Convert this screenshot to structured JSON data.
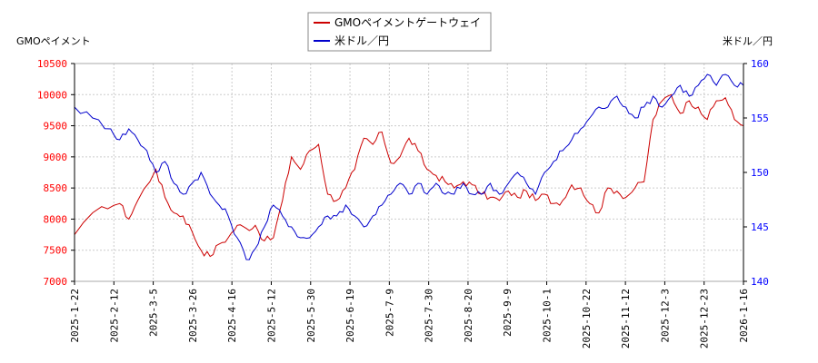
{
  "chart_data": {
    "type": "line",
    "left_axis_title": "GMOペイメント",
    "right_axis_title": "米ドル／円",
    "x_ticks": [
      "2025-1-22",
      "2025-2-12",
      "2025-3-5",
      "2025-3-26",
      "2025-4-16",
      "2025-5-12",
      "2025-5-30",
      "2025-6-19",
      "2025-7-9",
      "2025-7-30",
      "2025-8-20",
      "2025-9-9",
      "2025-10-1",
      "2025-10-22",
      "2025-11-12",
      "2025-12-3",
      "2025-12-23",
      "2026-1-16"
    ],
    "y_left": {
      "min": 7000,
      "max": 10500,
      "ticks": [
        7000,
        7500,
        8000,
        8500,
        9000,
        9500,
        10000,
        10500
      ],
      "color": "#ff0000"
    },
    "y_right": {
      "min": 140,
      "max": 160,
      "ticks": [
        140,
        145,
        150,
        155,
        160
      ],
      "color": "#0000ff"
    },
    "grid": true,
    "legend_position": "top-center",
    "series": [
      {
        "name": "GMOペイメントゲートウェイ",
        "axis": "left",
        "color": "#cc0000",
        "keyframes": [
          [
            0,
            7750
          ],
          [
            3,
            8200
          ],
          [
            5,
            8250
          ],
          [
            6,
            8000
          ],
          [
            7,
            8300
          ],
          [
            9,
            8800
          ],
          [
            10,
            8350
          ],
          [
            11,
            8100
          ],
          [
            12,
            8050
          ],
          [
            13,
            7800
          ],
          [
            14,
            7500
          ],
          [
            15,
            7400
          ],
          [
            16,
            7600
          ],
          [
            17,
            7700
          ],
          [
            18,
            7900
          ],
          [
            19,
            7850
          ],
          [
            20,
            7900
          ],
          [
            21,
            7650
          ],
          [
            22,
            7700
          ],
          [
            23,
            8300
          ],
          [
            24,
            9000
          ],
          [
            25,
            8800
          ],
          [
            26,
            9100
          ],
          [
            27,
            9200
          ],
          [
            28,
            8400
          ],
          [
            29,
            8300
          ],
          [
            30,
            8500
          ],
          [
            31,
            8800
          ],
          [
            32,
            9300
          ],
          [
            33,
            9200
          ],
          [
            34,
            9400
          ],
          [
            35,
            8900
          ],
          [
            36,
            9000
          ],
          [
            37,
            9300
          ],
          [
            38,
            9100
          ],
          [
            39,
            8800
          ],
          [
            40,
            8700
          ],
          [
            41,
            8600
          ],
          [
            42,
            8500
          ],
          [
            43,
            8600
          ],
          [
            44,
            8550
          ],
          [
            45,
            8400
          ],
          [
            46,
            8350
          ],
          [
            47,
            8300
          ],
          [
            48,
            8450
          ],
          [
            49,
            8350
          ],
          [
            50,
            8450
          ],
          [
            51,
            8300
          ],
          [
            52,
            8400
          ],
          [
            53,
            8250
          ],
          [
            54,
            8300
          ],
          [
            55,
            8550
          ],
          [
            56,
            8500
          ],
          [
            57,
            8250
          ],
          [
            58,
            8100
          ],
          [
            59,
            8500
          ],
          [
            60,
            8450
          ],
          [
            61,
            8350
          ],
          [
            62,
            8500
          ],
          [
            63,
            8600
          ],
          [
            64,
            9600
          ],
          [
            65,
            9900
          ],
          [
            66,
            10000
          ],
          [
            67,
            9700
          ],
          [
            68,
            9900
          ],
          [
            69,
            9800
          ],
          [
            70,
            9600
          ],
          [
            71,
            9900
          ],
          [
            72,
            9950
          ],
          [
            73,
            9600
          ],
          [
            74,
            9500
          ]
        ]
      },
      {
        "name": "米ドル／円",
        "axis": "right",
        "color": "#0000cc",
        "keyframes": [
          [
            0,
            156
          ],
          [
            2,
            155
          ],
          [
            4,
            154
          ],
          [
            5,
            153
          ],
          [
            6,
            154
          ],
          [
            7,
            153
          ],
          [
            8,
            152
          ],
          [
            9,
            150
          ],
          [
            10,
            151
          ],
          [
            11,
            149
          ],
          [
            12,
            148
          ],
          [
            13,
            149
          ],
          [
            14,
            150
          ],
          [
            15,
            148
          ],
          [
            16,
            147
          ],
          [
            17,
            146
          ],
          [
            18,
            144
          ],
          [
            19,
            142
          ],
          [
            20,
            143
          ],
          [
            21,
            145
          ],
          [
            22,
            147
          ],
          [
            23,
            146
          ],
          [
            24,
            145
          ],
          [
            25,
            144
          ],
          [
            26,
            144
          ],
          [
            27,
            145
          ],
          [
            28,
            146
          ],
          [
            29,
            146
          ],
          [
            30,
            147
          ],
          [
            31,
            146
          ],
          [
            32,
            145
          ],
          [
            33,
            146
          ],
          [
            34,
            147
          ],
          [
            35,
            148
          ],
          [
            36,
            149
          ],
          [
            37,
            148
          ],
          [
            38,
            149
          ],
          [
            39,
            148
          ],
          [
            40,
            149
          ],
          [
            41,
            148
          ],
          [
            42,
            148
          ],
          [
            43,
            149
          ],
          [
            44,
            148
          ],
          [
            45,
            148
          ],
          [
            46,
            149
          ],
          [
            47,
            148
          ],
          [
            48,
            149
          ],
          [
            49,
            150
          ],
          [
            50,
            149
          ],
          [
            51,
            148
          ],
          [
            52,
            150
          ],
          [
            53,
            151
          ],
          [
            54,
            152
          ],
          [
            55,
            153
          ],
          [
            56,
            154
          ],
          [
            57,
            155
          ],
          [
            58,
            156
          ],
          [
            59,
            156
          ],
          [
            60,
            157
          ],
          [
            61,
            156
          ],
          [
            62,
            155
          ],
          [
            63,
            156
          ],
          [
            64,
            157
          ],
          [
            65,
            156
          ],
          [
            66,
            157
          ],
          [
            67,
            158
          ],
          [
            68,
            157
          ],
          [
            69,
            158
          ],
          [
            70,
            159
          ],
          [
            71,
            158
          ],
          [
            72,
            159
          ],
          [
            73,
            158
          ],
          [
            74,
            158
          ]
        ]
      }
    ]
  }
}
